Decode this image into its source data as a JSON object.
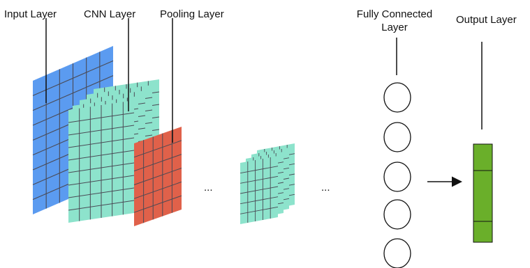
{
  "labels": {
    "input_layer": "Input Layer",
    "cnn_layer": "CNN Layer",
    "pooling_layer": "Pooling Layer",
    "fc_layer_line1": "Fully Connected",
    "fc_layer_line2": "Layer",
    "output_layer": "Output Layer"
  },
  "ellipsis": "...",
  "colors": {
    "input_layer": "#5B9BF0",
    "cnn_layer": "#8DE3CC",
    "pooling_layer": "#E0614A",
    "output_layer": "#6AAF2A",
    "grid_line": "#4a4a55",
    "stroke": "#111111"
  },
  "fc_neuron_count": 5,
  "output_cell_count": 3,
  "icons": [
    "arrow-right-icon"
  ]
}
